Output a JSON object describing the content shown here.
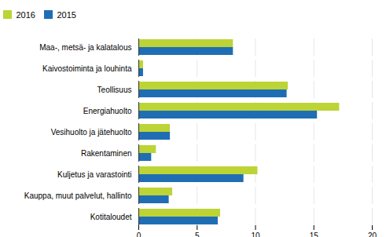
{
  "chart_data": {
    "type": "bar",
    "orientation": "horizontal",
    "categories": [
      "Kotitaloudet",
      "Kauppa, muut palvelut, hallinto",
      "Kuljetus ja varastointi",
      "Rakentaminen",
      "Vesihuolto ja jätehuolto",
      "Energiahuolto",
      "Teollisuus",
      "Kaivostoiminta ja louhinta",
      "Maa-, metsä- ja kalatalous"
    ],
    "series": [
      {
        "name": "2016",
        "color": "#bcd435",
        "values": [
          7.0,
          2.9,
          10.2,
          1.5,
          2.7,
          17.2,
          12.8,
          0.4,
          8.1
        ]
      },
      {
        "name": "2015",
        "color": "#1f6eb4",
        "values": [
          6.8,
          2.6,
          9.0,
          1.1,
          2.7,
          15.3,
          12.7,
          0.4,
          8.1
        ]
      }
    ],
    "xlim": [
      0,
      20
    ],
    "xticks": [
      0,
      5,
      10,
      15,
      20
    ],
    "grid": true,
    "legend": "top"
  }
}
